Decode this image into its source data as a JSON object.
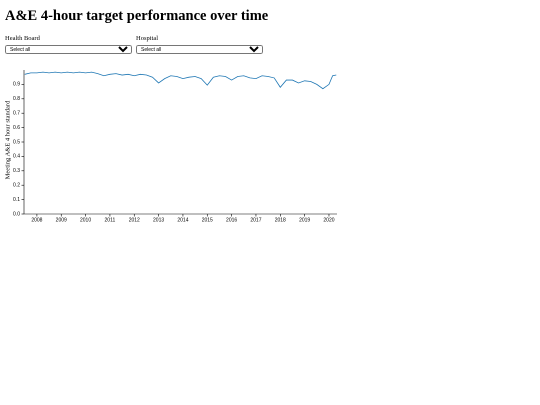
{
  "header": {
    "title": "A&E 4-hour target performance over time"
  },
  "filters": [
    {
      "label": "Health Board",
      "selected": "Select all"
    },
    {
      "label": "Hospital",
      "selected": "Select all"
    }
  ],
  "chart_data": {
    "type": "line",
    "y_label": "Meeting A&E 4 hour standard",
    "color": "#1f77b4",
    "x": [
      2007.5,
      2007.75,
      2008,
      2008.25,
      2008.5,
      2008.75,
      2009,
      2009.25,
      2009.5,
      2009.75,
      2010,
      2010.25,
      2010.5,
      2010.75,
      2011,
      2011.25,
      2011.5,
      2011.75,
      2012,
      2012.25,
      2012.5,
      2012.75,
      2013,
      2013.25,
      2013.5,
      2013.75,
      2014,
      2014.25,
      2014.5,
      2014.75,
      2015,
      2015.25,
      2015.5,
      2015.75,
      2016,
      2016.25,
      2016.5,
      2016.75,
      2017,
      2017.25,
      2017.5,
      2017.75,
      2018,
      2018.25,
      2018.5,
      2018.75,
      2019,
      2019.25,
      2019.5,
      2019.75,
      2020,
      2020.15,
      2020.3
    ],
    "values": [
      0.97,
      0.98,
      0.98,
      0.985,
      0.98,
      0.985,
      0.98,
      0.985,
      0.98,
      0.985,
      0.98,
      0.985,
      0.975,
      0.96,
      0.97,
      0.975,
      0.965,
      0.97,
      0.96,
      0.97,
      0.965,
      0.95,
      0.91,
      0.94,
      0.96,
      0.955,
      0.94,
      0.95,
      0.955,
      0.94,
      0.895,
      0.95,
      0.96,
      0.955,
      0.93,
      0.955,
      0.96,
      0.945,
      0.94,
      0.96,
      0.955,
      0.945,
      0.88,
      0.93,
      0.93,
      0.91,
      0.925,
      0.92,
      0.9,
      0.87,
      0.9,
      0.96,
      0.965
    ],
    "xlim": [
      2007.47,
      2020.33
    ],
    "xticks": [
      2008,
      2009,
      2010,
      2011,
      2012,
      2013,
      2014,
      2015,
      2016,
      2017,
      2018,
      2019,
      2020
    ],
    "ylim": [
      0,
      1
    ],
    "yticks": [
      {
        "value": 0,
        "label": "0.0"
      },
      {
        "value": 0.1,
        "label": "0.1"
      },
      {
        "value": 0.2,
        "label": "0.2"
      },
      {
        "value": 0.3,
        "label": "0.3"
      },
      {
        "value": 0.4,
        "label": "0.4"
      },
      {
        "value": 0.5,
        "label": "0.5"
      },
      {
        "value": 0.6,
        "label": "0.6"
      },
      {
        "value": 0.7,
        "label": "0.7"
      },
      {
        "value": 0.8,
        "label": "0.8"
      },
      {
        "value": 0.9,
        "label": "0.9"
      }
    ]
  }
}
